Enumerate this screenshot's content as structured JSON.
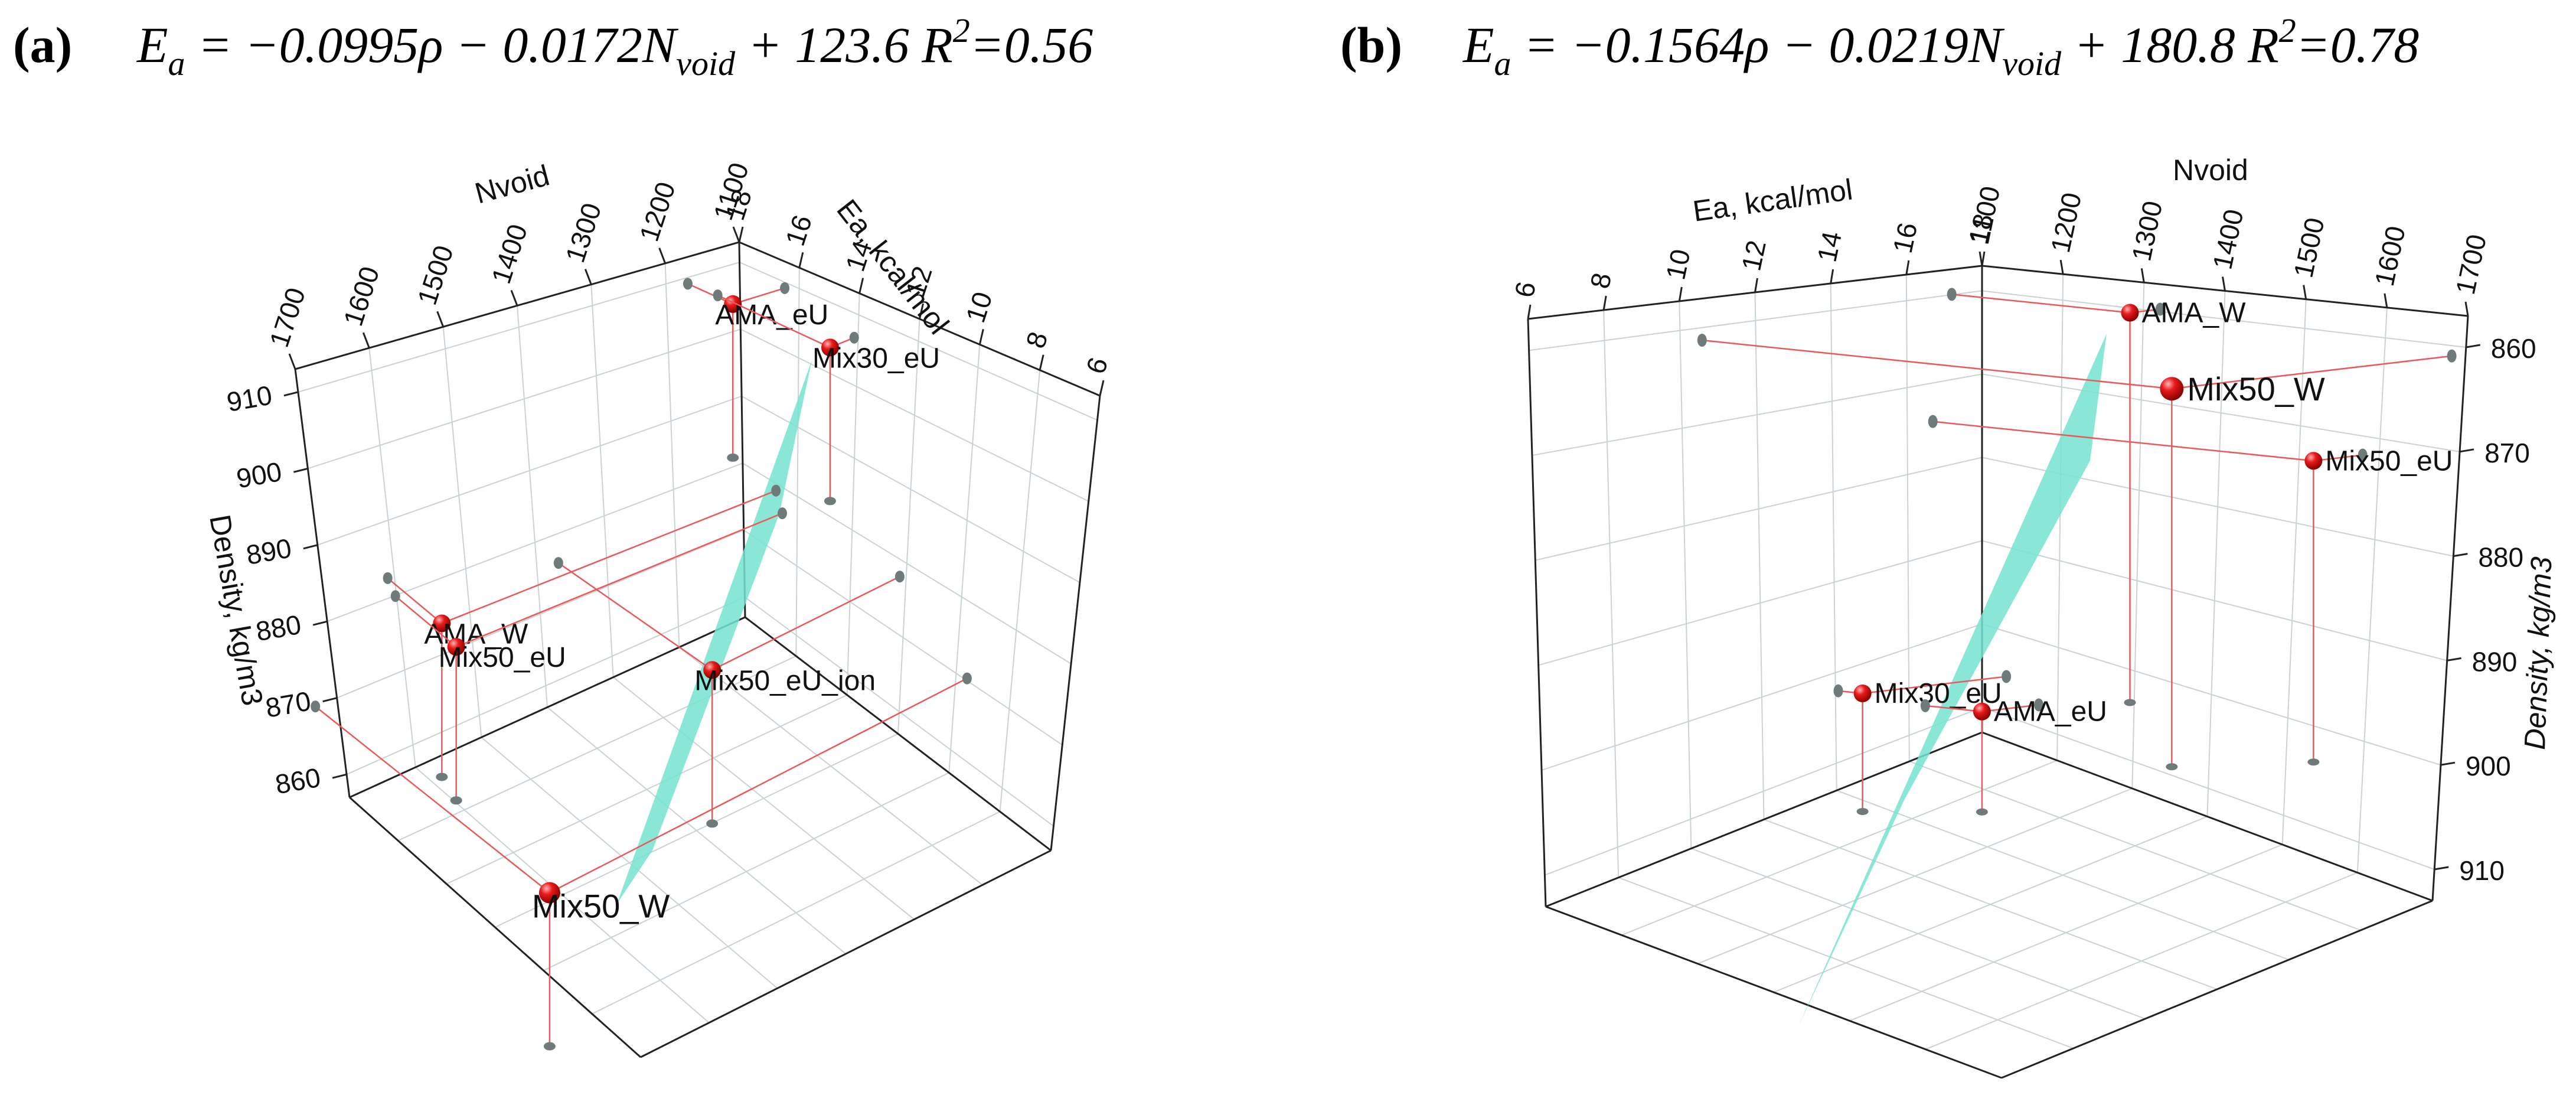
{
  "panels": [
    {
      "letter": "(a)",
      "equation": {
        "lhs": "E",
        "lhs_sub": "a",
        "rho_coef": " = −0.0995ρ − 0.0172N",
        "n_sub": "void",
        "intercept": " + 123.6   R",
        "sup": "2",
        "r2": "=0.56"
      }
    },
    {
      "letter": "(b)",
      "equation": {
        "lhs": "E",
        "lhs_sub": "a",
        "rho_coef": " = −0.1564ρ − 0.0219N",
        "n_sub": "void",
        "intercept": " + 180.8    R",
        "sup": "2",
        "r2": "=0.78"
      }
    }
  ],
  "chart_data": [
    {
      "type": "scatter3d",
      "panel": "a",
      "title": "E_a = −0.0995ρ − 0.0172N_void + 123.6   R²=0.56",
      "axes": {
        "nvoid": {
          "label": "Nvoid",
          "ticks": [
            1700,
            1600,
            1500,
            1400,
            1300,
            1200,
            1100
          ]
        },
        "ea": {
          "label": "Ea, kcal/mol",
          "ticks": [
            18,
            16,
            14,
            12,
            10,
            8,
            6
          ]
        },
        "density": {
          "label": "Density, kg/m3",
          "ticks": [
            910,
            900,
            890,
            880,
            870,
            860
          ]
        }
      },
      "points": [
        {
          "label": "AMA_eU",
          "nvoid": 1170,
          "ea": 16.5,
          "density": 909
        },
        {
          "label": "Mix30_eU",
          "nvoid": 1130,
          "ea": 14.2,
          "density": 906
        },
        {
          "label": "AMA_W",
          "nvoid": 1580,
          "ea": 16.9,
          "density": 878
        },
        {
          "label": "Mix50_eU",
          "nvoid": 1570,
          "ea": 16.7,
          "density": 875
        },
        {
          "label": "Mix50_eU_ion",
          "nvoid": 1350,
          "ea": 12.8,
          "density": 873
        },
        {
          "label": "Mix50_W",
          "nvoid": 1680,
          "ea": 10.6,
          "density": 862
        }
      ],
      "plane": {
        "color": "#76e3d0"
      }
    },
    {
      "type": "scatter3d",
      "panel": "b",
      "title": "E_a = −0.1564ρ − 0.0219N_void + 180.8   R²=0.78",
      "axes": {
        "ea": {
          "label": "Ea, kcal/mol",
          "ticks": [
            6,
            8,
            10,
            12,
            14,
            16,
            18
          ]
        },
        "nvoid": {
          "label": "Nvoid",
          "ticks": [
            1100,
            1200,
            1300,
            1400,
            1500,
            1600,
            1700
          ]
        },
        "density": {
          "label": "Density, kg/m3",
          "ticks": [
            860,
            870,
            880,
            890,
            900,
            910
          ]
        }
      },
      "points": [
        {
          "label": "AMA_W",
          "ea": 17.2,
          "nvoid": 1320,
          "density": 860
        },
        {
          "label": "Mix50_W",
          "ea": 10.6,
          "nvoid": 1680,
          "density": 862
        },
        {
          "label": "Mix50_eU",
          "ea": 16.7,
          "nvoid": 1570,
          "density": 875
        },
        {
          "label": "Mix30_eU",
          "ea": 14.2,
          "nvoid": 1130,
          "density": 906
        },
        {
          "label": "AMA_eU",
          "ea": 16.5,
          "nvoid": 1170,
          "density": 909
        }
      ],
      "plane": {
        "color": "#76e3d0"
      }
    }
  ]
}
